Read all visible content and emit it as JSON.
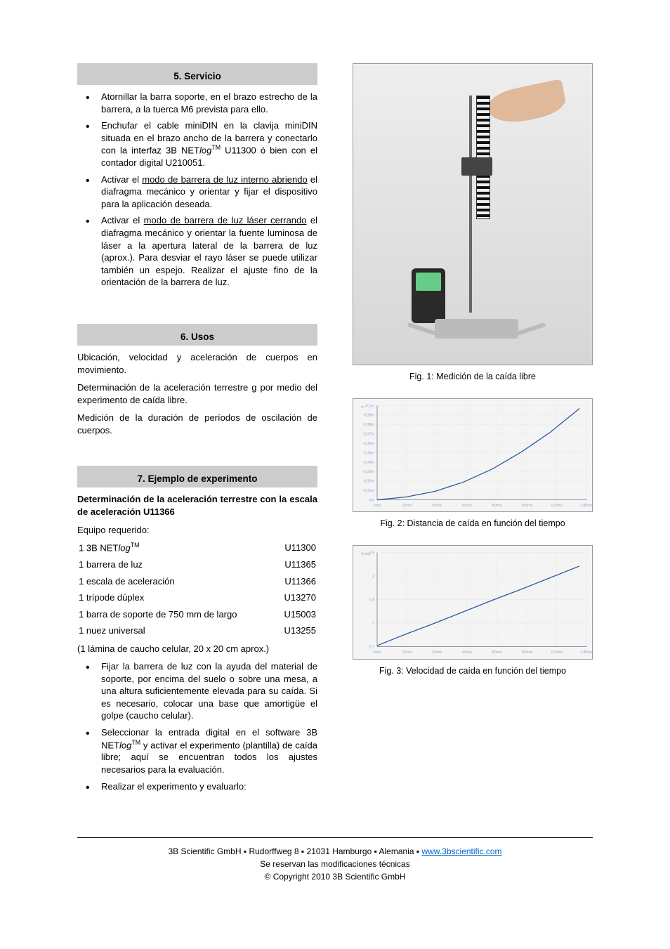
{
  "section5": {
    "title": "5. Servicio",
    "items": [
      "Atornillar la barra soporte, en el brazo estrecho de la barrera, a la tuerca M6 prevista para ello.",
      "__PLUG__",
      "__MODE1__",
      "__MODE2__"
    ]
  },
  "plug_item": {
    "pre": "Enchufar el cable miniDIN en la clavija miniDIN situada en el brazo ancho de la barrera y conectarlo con la interfaz 3B NET",
    "brand_ital": "log",
    "tm": "TM",
    "post": " U11300 ó bien con el contador digital U210051."
  },
  "mode1": {
    "pre": "Activar el ",
    "ul": "modo de barrera de luz interno abriendo",
    "post": " el diafragma mecánico y orientar y fijar el dispositivo para la aplicación deseada."
  },
  "mode2": {
    "pre": "Activar el ",
    "ul": "modo de barrera de luz láser cerrando",
    "post": " el diafragma mecánico y orientar la fuente luminosa de láser a la apertura lateral de la barrera de luz (aprox.). Para desviar el rayo láser se puede utilizar también un espejo. Realizar el ajuste fino de la orientación de la barrera de luz."
  },
  "section6": {
    "title": "6. Usos",
    "paras": [
      "Ubicación, velocidad y aceleración de cuerpos en movimiento.",
      "Determinación de la aceleración terrestre g por medio del experimento de caída libre.",
      "Medición de la duración de períodos de oscilación de cuerpos."
    ]
  },
  "section7": {
    "title": "7. Ejemplo de experimento",
    "subtitle": "Determinación de la aceleración terrestre con la escala de aceleración U11366",
    "equip_label": "Equipo requerido:",
    "equipment": [
      {
        "name": "1 3B NET__BRAND__",
        "code": "U11300"
      },
      {
        "name": "1 barrera de luz",
        "code": "U11365"
      },
      {
        "name": "1 escala de aceleración",
        "code": "U11366"
      },
      {
        "name": "1 trípode dúplex",
        "code": "U13270"
      },
      {
        "name": "1 barra de soporte de 750 mm de largo",
        "code": "U15003"
      },
      {
        "name": "1 nuez universal",
        "code": "U13255"
      }
    ],
    "note": "(1 lámina de caucho celular, 20 x 20 cm aprox.)",
    "steps": [
      "Fijar la barrera de luz con la ayuda del material de soporte, por encima del suelo o sobre una mesa, a una altura suficientemente elevada para su caída. Si es necesario, colocar una base que amortigüe el golpe (caucho celular).",
      "__SOFTWARE__",
      "Realizar el experimento y evaluarlo:"
    ]
  },
  "software_step": {
    "pre": "Seleccionar la entrada digital en el software 3B NET",
    "brand_ital": "log",
    "tm": "TM",
    "post": " y activar el experimento (plantilla) de caída libre; aquí se encuentran todos los ajustes necesarios para la evaluación."
  },
  "figures": {
    "f1_caption": "Fig. 1: Medición de la caída libre",
    "f2_caption": "Fig. 2: Distancia de caída en función del tiempo",
    "f3_caption": "Fig. 3: Velocidad de caída en función del tiempo"
  },
  "chart2": {
    "type": "line",
    "y_unit": "m",
    "y_ticks": [
      "0m",
      "0,01m",
      "0,02m",
      "0,03m",
      "0,04m",
      "0,05m",
      "0,06m",
      "0,07m",
      "0,08m",
      "0,09m",
      "0,1m"
    ],
    "ylim": [
      0,
      0.1
    ],
    "x_ticks": [
      "0ms",
      "20ms",
      "40ms",
      "60ms",
      "80ms",
      "100ms",
      "120ms",
      "140ms"
    ],
    "xlim": [
      0,
      145
    ],
    "values_x": [
      0,
      20,
      40,
      60,
      80,
      100,
      120,
      140
    ],
    "values_y": [
      0.0,
      0.003,
      0.009,
      0.019,
      0.033,
      0.051,
      0.072,
      0.097
    ],
    "line_color": "#2a5aa0",
    "grid_color": "#e6e6e6",
    "axis_color": "#888888",
    "tick_color": "#8aa9d6",
    "background_color": "#f4f4f4",
    "tick_fontsize": 6
  },
  "chart3": {
    "type": "line",
    "y_unit": "[m/s]",
    "y_ticks": [
      "0,7",
      "1",
      "1,5",
      "2",
      "2,5"
    ],
    "ylim": [
      0.7,
      2.5
    ],
    "x_ticks": [
      "0ms",
      "20ms",
      "40ms",
      "60ms",
      "80ms",
      "100ms",
      "120ms",
      "140ms"
    ],
    "xlim": [
      0,
      145
    ],
    "values_x": [
      0,
      20,
      40,
      60,
      80,
      100,
      120,
      140
    ],
    "values_y": [
      0.72,
      0.94,
      1.15,
      1.37,
      1.59,
      1.8,
      2.02,
      2.24
    ],
    "line_color": "#2a5aa0",
    "grid_color": "#e6e6e6",
    "axis_color": "#888888",
    "tick_color": "#8aa9d6",
    "background_color": "#f4f4f4",
    "tick_fontsize": 6
  },
  "footer": {
    "company": "3B Scientific GmbH",
    "sep": " ▪ ",
    "address": "Rudorffweg 8 ▪ 21031 Hamburgo ▪ Alemania ▪ ",
    "url_text": "www.3bscientific.com",
    "line2": "Se reservan las modificaciones técnicas",
    "line3": "© Copyright 2010 3B Scientific GmbH"
  }
}
